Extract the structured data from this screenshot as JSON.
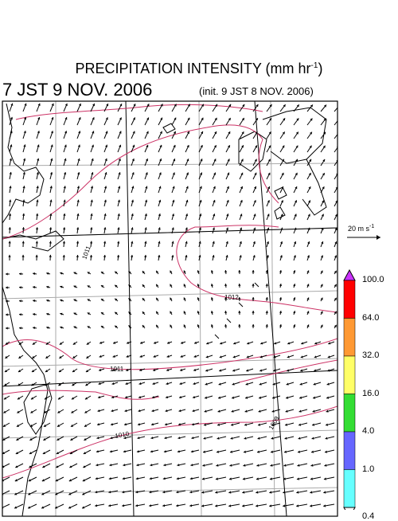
{
  "header": {
    "title_main": "PRECIPITATION INTENSITY (mm hr",
    "title_sup": "-1",
    "title_close": ")",
    "valid_time": "7 JST 9 NOV. 2006",
    "init_time": "(init. 9 JST 8 NOV. 2006)"
  },
  "reference_vector": {
    "label_main": "20 m s",
    "label_sup": "-1"
  },
  "colorbar": {
    "levels": [
      "100.0",
      "64.0",
      "32.0",
      "16.0",
      "4.0",
      "1.0",
      "0.4"
    ],
    "colors": [
      "#ff0000",
      "#ff9933",
      "#ffff66",
      "#33dd33",
      "#6666ff",
      "#66ffff"
    ],
    "top_cap_color": "#cc33ff",
    "bottom_cap_color": "#ffffff"
  },
  "isobars": [
    {
      "label": "1011"
    },
    {
      "label": "1012"
    },
    {
      "label": "1011"
    },
    {
      "label": "1010"
    },
    {
      "label": "1009"
    }
  ],
  "colors": {
    "isobar": "#cc3366",
    "grid": "#aaaaaa",
    "coast": "#000000",
    "arrow": "#000000"
  }
}
